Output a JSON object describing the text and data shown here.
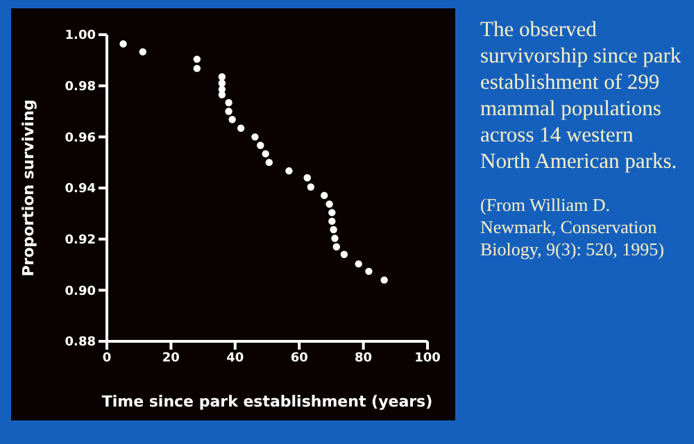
{
  "chart_data": {
    "type": "scatter",
    "title": "The observed survivorship since park establishment of 299 mammal populations across 14 western North American parks.",
    "annotations": [
      "(From William D. Newmark, Conservation Biology, 9(3): 520, 1995)"
    ],
    "xlabel": "Time  since  park  establishment  (years)",
    "ylabel": "Proportion    surviving",
    "marker": "circle",
    "grid": false,
    "xlim": [
      0,
      100
    ],
    "xticks": [
      0,
      20,
      40,
      60,
      80,
      100
    ],
    "ylim": [
      0.88,
      1.0
    ],
    "yticks": [
      {
        "value": 0.88,
        "label": "0.88"
      },
      {
        "value": 0.9,
        "label": "0.90"
      },
      {
        "value": 0.92,
        "label": "0.92"
      },
      {
        "value": 0.94,
        "label": "0.94"
      },
      {
        "value": 0.96,
        "label": "0.96"
      },
      {
        "value": 0.98,
        "label": "0.98"
      },
      {
        "value": 1.0,
        "label": "1.00"
      }
    ],
    "series": [
      {
        "color": "#ffffff",
        "x": [
          5.1,
          11.2,
          28.1,
          28.1,
          35.9,
          35.9,
          35.9,
          35.9,
          38.0,
          38.0,
          39.1,
          41.8,
          46.2,
          47.9,
          49.5,
          50.6,
          56.8,
          62.5,
          63.6,
          67.8,
          69.4,
          70.2,
          70.2,
          70.7,
          71.1,
          71.6,
          74.0,
          78.5,
          81.7,
          86.5
        ],
        "values": [
          0.9964,
          0.9933,
          0.9904,
          0.9868,
          0.9835,
          0.981,
          0.9786,
          0.9765,
          0.9734,
          0.97,
          0.9668,
          0.9634,
          0.96,
          0.9567,
          0.9534,
          0.95,
          0.9467,
          0.944,
          0.9404,
          0.9371,
          0.9337,
          0.9304,
          0.927,
          0.9237,
          0.9203,
          0.917,
          0.914,
          0.9103,
          0.9074,
          0.904
        ]
      }
    ]
  }
}
